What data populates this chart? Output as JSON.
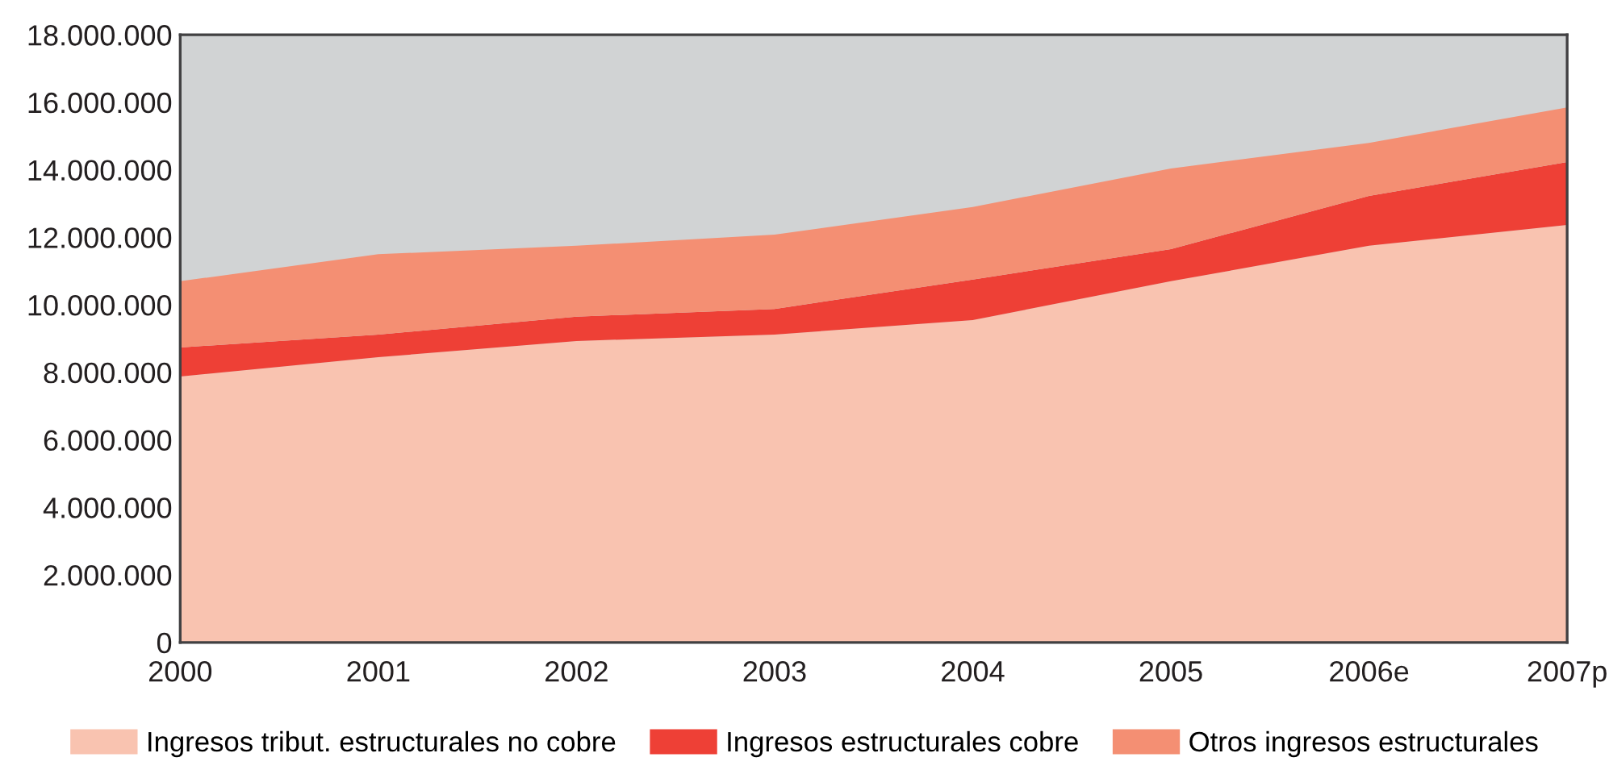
{
  "chart_data": {
    "type": "area",
    "stacked": true,
    "legend": "bottom",
    "grid": false,
    "categories": [
      "2000",
      "2001",
      "2002",
      "2003",
      "2004",
      "2005",
      "2006e",
      "2007p"
    ],
    "series": [
      {
        "name": "Ingresos tribut. estructurales no cobre",
        "color": "#f9c3b0",
        "values": [
          7880000,
          8450000,
          8930000,
          9120000,
          9550000,
          10700000,
          11750000,
          12370000
        ]
      },
      {
        "name": "Ingresos estructurales cobre",
        "color": "#ee4036",
        "values": [
          860000,
          670000,
          720000,
          760000,
          1200000,
          950000,
          1480000,
          1860000
        ]
      },
      {
        "name": "Otros ingresos estructurales",
        "color": "#f48f73",
        "values": [
          1960000,
          2380000,
          2100000,
          2200000,
          2150000,
          2390000,
          1570000,
          1620000
        ]
      }
    ],
    "ylim": [
      0,
      18000000
    ],
    "yticks": [
      0,
      {
        "value": 2000000,
        "label": "2.000.000"
      },
      {
        "value": 4000000,
        "label": "4.000.000"
      },
      {
        "value": 6000000,
        "label": "6.000.000"
      },
      {
        "value": 8000000,
        "label": "8.000.000"
      },
      {
        "value": 10000000,
        "label": "10.000.000"
      },
      {
        "value": 12000000,
        "label": "12.000.000"
      },
      {
        "value": 14000000,
        "label": "14.000.000"
      },
      {
        "value": 16000000,
        "label": "16.000.000"
      },
      {
        "value": 18000000,
        "label": "18.000.000"
      }
    ]
  }
}
